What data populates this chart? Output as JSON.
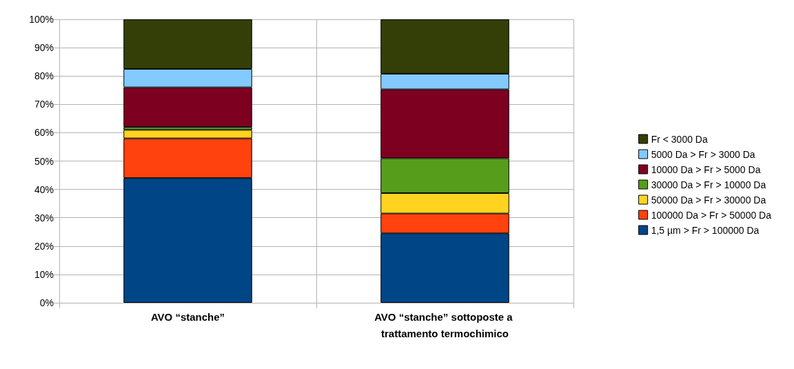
{
  "chart_data": {
    "type": "bar",
    "stacked": true,
    "categories": [
      "AVO “stanche”",
      "AVO “stanche” sottoposte a trattamento termochimico"
    ],
    "series": [
      {
        "name": "1,5 µm > Fr > 100000 Da",
        "color": "#004586",
        "values": [
          44,
          24.5
        ]
      },
      {
        "name": "100000 Da > Fr > 50000 Da",
        "color": "#ff420e",
        "values": [
          14,
          7
        ]
      },
      {
        "name": "50000 Da > Fr > 30000 Da",
        "color": "#ffd320",
        "values": [
          3,
          7.2
        ]
      },
      {
        "name": "30000 Da > Fr > 10000 Da",
        "color": "#579d1c",
        "values": [
          1,
          12.3
        ]
      },
      {
        "name": "10000 Da > Fr > 5000 Da",
        "color": "#7e0021",
        "values": [
          14,
          24.3
        ]
      },
      {
        "name": "5000 Da > Fr > 3000 Da",
        "color": "#83caff",
        "values": [
          6.5,
          5.5
        ]
      },
      {
        "name": "Fr < 3000 Da",
        "color": "#333f07",
        "values": [
          17.5,
          19.2
        ]
      }
    ],
    "ylim": [
      0,
      100
    ],
    "yticks": [
      {
        "value": 0,
        "label": "0%"
      },
      {
        "value": 10,
        "label": "10%"
      },
      {
        "value": 20,
        "label": "20%"
      },
      {
        "value": 30,
        "label": "30%"
      },
      {
        "value": 40,
        "label": "40%"
      },
      {
        "value": 50,
        "label": "50%"
      },
      {
        "value": 60,
        "label": "60%"
      },
      {
        "value": 70,
        "label": "70%"
      },
      {
        "value": 80,
        "label": "80%"
      },
      {
        "value": 90,
        "label": "90%"
      },
      {
        "value": 100,
        "label": "100%"
      }
    ],
    "grid": "y",
    "legend": "right"
  }
}
